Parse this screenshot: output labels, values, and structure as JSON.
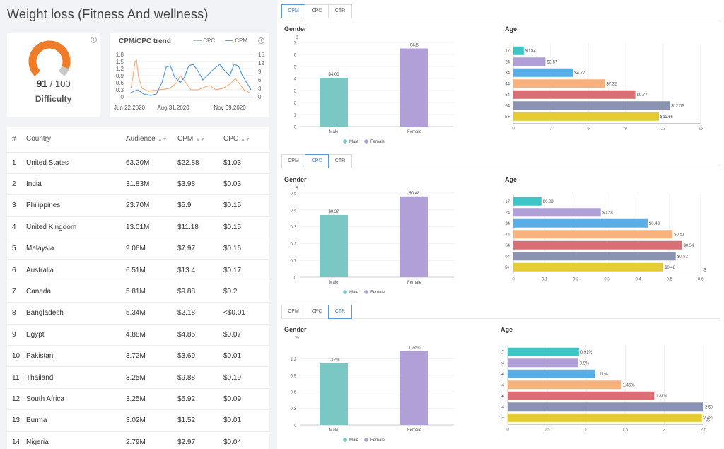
{
  "page_title": "Weight loss (Fitness And wellness)",
  "difficulty": {
    "value": "91",
    "max": "/ 100",
    "label": "Difficulty",
    "fraction": 0.91,
    "gauge_color": "#f07c2a",
    "track_color": "#c8c8c8"
  },
  "trend": {
    "title": "CPM/CPC trend",
    "legend": [
      {
        "name": "CPC",
        "color": "#f4b183"
      },
      {
        "name": "CPM",
        "color": "#5b9bd5"
      }
    ],
    "left_ticks": [
      "1.8",
      "1.5",
      "1.2",
      "0.9",
      "0.6",
      "0.3",
      "0"
    ],
    "right_ticks": [
      "15",
      "12",
      "9",
      "6",
      "3",
      "0"
    ],
    "x_labels": [
      "Jun 22,2020",
      "Aug 31,2020",
      "Nov 09,2020"
    ]
  },
  "table": {
    "headers": [
      "#",
      "Country",
      "Audience",
      "CPM",
      "CPC"
    ],
    "rows": [
      [
        "1",
        "United States",
        "63.20M",
        "$22.88",
        "$1.03"
      ],
      [
        "2",
        "India",
        "31.83M",
        "$3.98",
        "$0.03"
      ],
      [
        "3",
        "Philippines",
        "23.70M",
        "$5.9",
        "$0.15"
      ],
      [
        "4",
        "United Kingdom",
        "13.01M",
        "$11.18",
        "$0.15"
      ],
      [
        "5",
        "Malaysia",
        "9.06M",
        "$7.97",
        "$0.16"
      ],
      [
        "6",
        "Australia",
        "6.51M",
        "$13.4",
        "$0.17"
      ],
      [
        "7",
        "Canada",
        "5.81M",
        "$9.88",
        "$0.2"
      ],
      [
        "8",
        "Bangladesh",
        "5.34M",
        "$2.18",
        "<$0.01"
      ],
      [
        "9",
        "Egypt",
        "4.88M",
        "$4.85",
        "$0.07"
      ],
      [
        "10",
        "Pakistan",
        "3.72M",
        "$3.69",
        "$0.01"
      ],
      [
        "11",
        "Thailand",
        "3.25M",
        "$9.88",
        "$0.19"
      ],
      [
        "12",
        "South Africa",
        "3.25M",
        "$5.92",
        "$0.09"
      ],
      [
        "13",
        "Burma",
        "3.02M",
        "$1.52",
        "$0.01"
      ],
      [
        "14",
        "Nigeria",
        "2.79M",
        "$2.97",
        "$0.04"
      ]
    ]
  },
  "tabs": [
    "CPM",
    "CPC",
    "CTR"
  ],
  "gender_title": "Gender",
  "age_title": "Age",
  "gender_legend": [
    "Male",
    "Female"
  ],
  "colors": {
    "male": "#7ac7c4",
    "female": "#b19fd8",
    "age": [
      "#3ec5c5",
      "#b19fd8",
      "#5aaee8",
      "#f8b27e",
      "#d96f74",
      "#8b93b3",
      "#e4cc32"
    ]
  },
  "age_groups": [
    "13~17",
    "18~24",
    "25~34",
    "35~44",
    "45~54",
    "55~64",
    "65+"
  ],
  "chart_data": [
    {
      "type": "bar",
      "metric": "CPM",
      "part": "gender",
      "categories": [
        "Male",
        "Female"
      ],
      "values": [
        4.06,
        6.5
      ],
      "labels": [
        "$4.06",
        "$6.5"
      ],
      "unit": "$",
      "yticks": [
        "0",
        "1",
        "2",
        "3",
        "4",
        "5",
        "6",
        "7"
      ],
      "ylim": [
        0,
        7
      ]
    },
    {
      "type": "bar",
      "metric": "CPM",
      "part": "age",
      "orientation": "horizontal",
      "categories": [
        "13~17",
        "18~24",
        "25~34",
        "35~44",
        "45~54",
        "55~64",
        "65+"
      ],
      "values": [
        0.84,
        2.57,
        4.77,
        7.32,
        9.77,
        12.53,
        11.66
      ],
      "labels": [
        "$0.84",
        "$2.57",
        "$4.77",
        "$7.32",
        "$9.77",
        "$12.53",
        "$11.66"
      ],
      "xticks": [
        "0",
        "3",
        "6",
        "9",
        "12",
        "15"
      ],
      "xlim": [
        0,
        15
      ],
      "unit": ""
    },
    {
      "type": "bar",
      "metric": "CPC",
      "part": "gender",
      "categories": [
        "Male",
        "Female"
      ],
      "values": [
        0.37,
        0.48
      ],
      "labels": [
        "$0.37",
        "$0.48"
      ],
      "unit": "$",
      "yticks": [
        "0",
        "0.1",
        "0.2",
        "0.3",
        "0.4",
        "0.5"
      ],
      "ylim": [
        0,
        0.5
      ]
    },
    {
      "type": "bar",
      "metric": "CPC",
      "part": "age",
      "orientation": "horizontal",
      "categories": [
        "13~17",
        "18~24",
        "25~34",
        "35~44",
        "45~54",
        "55~64",
        "65+"
      ],
      "values": [
        0.09,
        0.28,
        0.43,
        0.51,
        0.54,
        0.52,
        0.48
      ],
      "labels": [
        "$0.09",
        "$0.28",
        "$0.43",
        "$0.51",
        "$0.54",
        "$0.52",
        "$0.48"
      ],
      "xticks": [
        "0",
        "0.1",
        "0.2",
        "0.3",
        "0.4",
        "0.5",
        "0.6"
      ],
      "xlim": [
        0,
        0.6
      ],
      "unit": "$"
    },
    {
      "type": "bar",
      "metric": "CTR",
      "part": "gender",
      "categories": [
        "Male",
        "Female"
      ],
      "values": [
        1.12,
        1.34
      ],
      "labels": [
        "1.12%",
        "1.34%"
      ],
      "unit": "%",
      "yticks": [
        "0",
        "0.3",
        "0.6",
        "0.9",
        "1.2"
      ],
      "ylim": [
        0,
        1.5
      ]
    },
    {
      "type": "bar",
      "metric": "CTR",
      "part": "age",
      "orientation": "horizontal",
      "categories": [
        "13~17",
        "18~24",
        "25~34",
        "35~44",
        "45~54",
        "55~64",
        "65+"
      ],
      "values": [
        0.91,
        0.9,
        1.11,
        1.45,
        1.87,
        2.5,
        2.48
      ],
      "labels": [
        "0.91%",
        "0.9%",
        "1.11%",
        "1.45%",
        "1.87%",
        "2.5%",
        "2.48%"
      ],
      "xticks": [
        "0",
        "0.5",
        "1",
        "1.5",
        "2",
        "2.5"
      ],
      "xlim": [
        0,
        2.5
      ],
      "unit": "%"
    }
  ]
}
